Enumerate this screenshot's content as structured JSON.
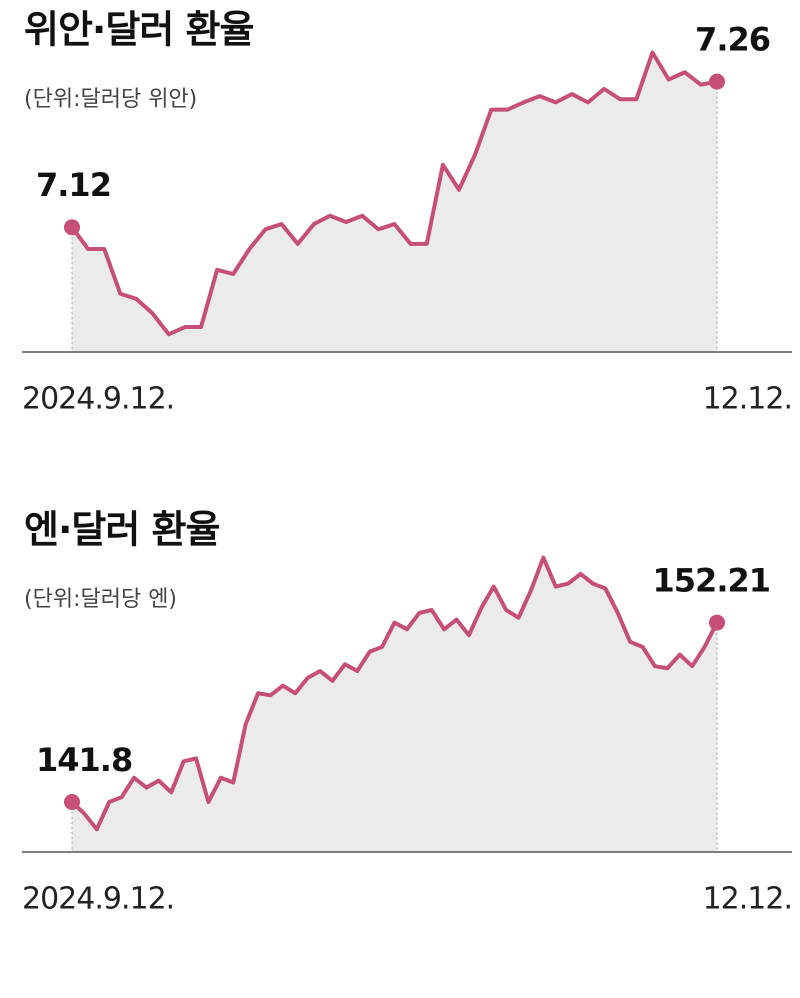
{
  "chart_data": [
    {
      "type": "line",
      "title": "위안·달러 환율",
      "subtitle": "(단위:달러당 위안)",
      "categories": [
        "2024.9.12.",
        null,
        null,
        null,
        null,
        null,
        null,
        null,
        null,
        null,
        null,
        null,
        null,
        null,
        null,
        null,
        null,
        null,
        null,
        null,
        null,
        null,
        null,
        null,
        null,
        null,
        null,
        null,
        null,
        null,
        null,
        null,
        null,
        null,
        null,
        null,
        null,
        null,
        null,
        null,
        "12.12."
      ],
      "values": [
        7.12,
        7.099,
        7.099,
        7.056,
        7.051,
        7.037,
        7.017,
        7.024,
        7.024,
        7.079,
        7.075,
        7.099,
        7.118,
        7.123,
        7.104,
        7.123,
        7.131,
        7.125,
        7.131,
        7.118,
        7.123,
        7.104,
        7.104,
        7.18,
        7.156,
        7.19,
        7.233,
        7.233,
        7.24,
        7.246,
        7.24,
        7.248,
        7.24,
        7.253,
        7.243,
        7.243,
        7.288,
        7.262,
        7.269,
        7.257,
        7.26
      ],
      "ylim": [
        7.0,
        7.3
      ],
      "color": "#c54f76",
      "area_color": "#ebebeb"
    },
    {
      "type": "line",
      "title": "엔·달러 환율",
      "subtitle": "(단위:달러당 엔)",
      "categories": [
        "2024.9.12.",
        null,
        null,
        null,
        null,
        null,
        null,
        null,
        null,
        null,
        null,
        null,
        null,
        null,
        null,
        null,
        null,
        null,
        null,
        null,
        null,
        null,
        null,
        null,
        null,
        null,
        null,
        null,
        null,
        null,
        null,
        null,
        null,
        null,
        null,
        null,
        null,
        null,
        null,
        null,
        null,
        null,
        null,
        null,
        null,
        null,
        null,
        null,
        null,
        null,
        null,
        null,
        "12.12."
      ],
      "values": [
        141.8,
        141.12,
        140.22,
        141.8,
        142.08,
        143.21,
        142.64,
        143.04,
        142.36,
        144.16,
        144.33,
        141.8,
        143.21,
        142.93,
        146.31,
        148.11,
        147.99,
        148.55,
        148.11,
        149.0,
        149.4,
        148.83,
        149.79,
        149.4,
        150.52,
        150.8,
        152.21,
        151.82,
        152.77,
        152.94,
        151.82,
        152.38,
        151.48,
        153.06,
        154.3,
        152.94,
        152.49,
        154.07,
        155.98,
        154.3,
        154.47,
        155.03,
        154.47,
        154.19,
        152.77,
        151.09,
        150.8,
        149.68,
        149.56,
        150.35,
        149.68,
        150.8,
        152.21
      ],
      "ylim": [
        138.9,
        157.0
      ],
      "color": "#c54f76",
      "area_color": "#ebebeb"
    }
  ]
}
